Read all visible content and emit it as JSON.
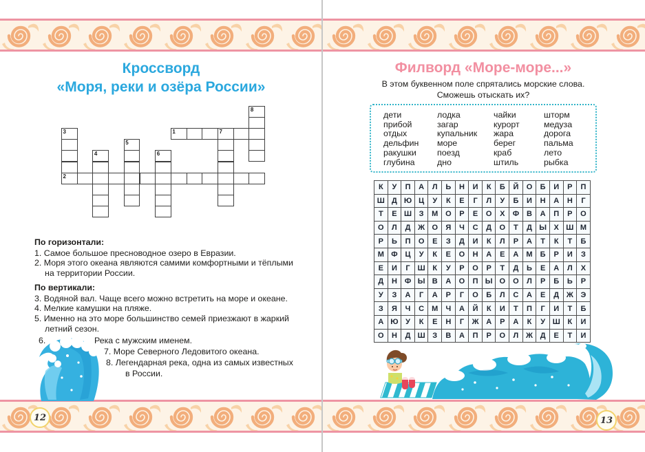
{
  "colors": {
    "cyan_title": "#2ba8de",
    "pink_title": "#f28fa1",
    "band_line": "#ee94a3",
    "band_bg": "#fdf3e6",
    "band_spiral": "#f2ae7c",
    "band_flame": "#f8d2a7",
    "box_border": "#2fb3c8",
    "grid_border": "#4d4d4d",
    "wave_blue": "#2db3d8",
    "wave_light": "#a8e3f6"
  },
  "left_page": {
    "title_line1": "Кроссворд",
    "title_line2": "«Моря, реки и озёра России»",
    "crossword": {
      "words": [
        {
          "num": "1",
          "dir": "h",
          "col": 7,
          "row": 2,
          "len": 6
        },
        {
          "num": "2",
          "dir": "h",
          "col": 0,
          "row": 6,
          "len": 13
        },
        {
          "num": "3",
          "dir": "v",
          "col": 0,
          "row": 2,
          "len": 5
        },
        {
          "num": "4",
          "dir": "v",
          "col": 2,
          "row": 4,
          "len": 6
        },
        {
          "num": "5",
          "dir": "v",
          "col": 4,
          "row": 3,
          "len": 6
        },
        {
          "num": "6",
          "dir": "v",
          "col": 6,
          "row": 4,
          "len": 6
        },
        {
          "num": "7",
          "dir": "v",
          "col": 10,
          "row": 2,
          "len": 7
        },
        {
          "num": "8",
          "dir": "v",
          "col": 12,
          "row": 0,
          "len": 5
        }
      ]
    },
    "across_header": "По горизонтали:",
    "across": [
      {
        "num": "1",
        "lines": [
          "Самое большое пресноводное озеро в Евразии."
        ]
      },
      {
        "num": "2",
        "lines": [
          "Моря этого океана являются самими комфортными и тёплыми",
          "на территории России."
        ]
      }
    ],
    "down_header": "По вертикали:",
    "down": [
      {
        "num": "3",
        "lines": [
          "Водяной вал. Чаще всего можно встретить на море и океане."
        ]
      },
      {
        "num": "4",
        "lines": [
          "Мелкие камушки на пляже."
        ]
      },
      {
        "num": "5",
        "lines": [
          "Именно на это море большинство семей приезжают в жаркий",
          "летний сезон."
        ]
      }
    ],
    "tail": {
      "num6": "6.",
      "text6": "Река с мужским именем.",
      "line7": "7. Море Северного Ледовитого океана.",
      "line8a": "8. Легендарная река, одна из самых известных",
      "line8b": "в России."
    },
    "page_number": "12"
  },
  "right_page": {
    "title": "Филворд «Море-море...»",
    "intro_line1": "В этом буквенном поле спрятались морские слова.",
    "intro_line2": "Сможешь отыскать их?",
    "word_columns": [
      [
        "дети",
        "прибой",
        "отдых",
        "дельфин",
        "ракушки",
        "глубина"
      ],
      [
        "лодка",
        "загар",
        "купальник",
        "море",
        "поезд",
        "дно"
      ],
      [
        "чайки",
        "курорт",
        "жара",
        "берег",
        "краб",
        "штиль"
      ],
      [
        "шторм",
        "медуза",
        "дорога",
        "пальма",
        "лето",
        "рыбка"
      ]
    ],
    "grid_rows": [
      "КУПАЛЬНИКБЙОБИРП",
      "ШДЮЦУКЕГЛУБИНАНГ",
      "ТЕШЗМОРЕОХФВАПРО",
      "ОЛДЖОЯЧСДОТДЫХШМ",
      "РЬПОЕЗДИКЛРАТКТБ",
      "МФЦУКЕОНАЕАМБРИЗ",
      "ЕИГШКУРОРТДЬЕАЛХ",
      "ДНФЫВАОПЫООЛРБЬР",
      "УЗАГАРГОБЛСАЕДЖЭ",
      "ЗЯЧСМЧАЙКИТПГИТБ",
      "АЮУКЕНГЖАРАКУШКИ",
      "ОНДШЗВАПРОЛЖДЕТИ"
    ],
    "page_number": "13"
  }
}
